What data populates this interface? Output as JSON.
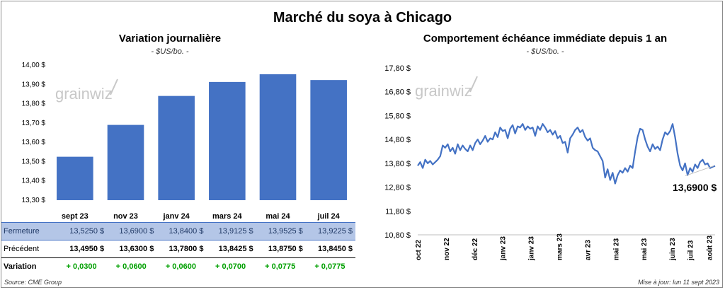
{
  "title": "Marché du soya à Chicago",
  "watermark": "grainwiz",
  "left_chart": {
    "subtitle": "Variation journalière",
    "unit": "- $US/bo. -",
    "bar_color": "#4472c4"
  },
  "right_chart": {
    "subtitle": "Comportement échéance immédiate depuis 1 an",
    "unit": "- $US/bo. -",
    "line_color": "#4472c4",
    "last_value_label": "13,6900 $"
  },
  "chart_data": [
    {
      "type": "bar",
      "categories": [
        "sept 23",
        "nov 23",
        "janv 24",
        "mars 24",
        "mai 24",
        "juil 24"
      ],
      "values": [
        13.525,
        13.69,
        13.84,
        13.9125,
        13.9525,
        13.9225
      ],
      "ylim": [
        13.3,
        14.0
      ],
      "yticks": [
        "14,00 $",
        "13,90 $",
        "13,80 $",
        "13,70 $",
        "13,60 $",
        "13,50 $",
        "13,40 $",
        "13,30 $"
      ],
      "ytick_values": [
        14.0,
        13.9,
        13.8,
        13.7,
        13.6,
        13.5,
        13.4,
        13.3
      ],
      "grid": false,
      "legend": "none"
    },
    {
      "type": "line",
      "x_start": "oct 22",
      "x_end": "11 sept 2023",
      "x_tick_labels": [
        "oct 22",
        "nov 22",
        "déc 22",
        "janv 23",
        "janv 23",
        "mars 23",
        "avr 23",
        "mai 23",
        "mai 23",
        "juin 23",
        "juil 23",
        "août 23"
      ],
      "x_tick_positions": [
        0.0,
        0.095,
        0.19,
        0.285,
        0.38,
        0.475,
        0.57,
        0.665,
        0.76,
        0.855,
        0.915,
        0.98
      ],
      "ylim": [
        10.8,
        17.8
      ],
      "yticks": [
        "17,80 $",
        "16,80 $",
        "15,80 $",
        "14,80 $",
        "13,80 $",
        "12,80 $",
        "11,80 $",
        "10,80 $"
      ],
      "ytick_values": [
        17.8,
        16.8,
        15.8,
        14.8,
        13.8,
        12.8,
        11.8,
        10.8
      ],
      "grid": false,
      "values": [
        13.7,
        13.85,
        13.6,
        13.95,
        13.8,
        13.9,
        13.75,
        13.85,
        13.95,
        14.1,
        14.55,
        14.45,
        14.6,
        14.3,
        14.45,
        14.2,
        14.6,
        14.35,
        14.55,
        14.4,
        14.3,
        14.55,
        14.35,
        14.65,
        14.8,
        14.6,
        14.75,
        14.95,
        14.7,
        14.85,
        14.8,
        15.1,
        14.9,
        15.3,
        15.15,
        15.2,
        14.85,
        15.25,
        15.4,
        15.05,
        15.35,
        15.3,
        15.45,
        15.2,
        15.35,
        15.25,
        15.3,
        14.95,
        15.35,
        15.2,
        15.45,
        15.3,
        15.1,
        15.2,
        15.0,
        15.15,
        14.85,
        14.95,
        14.65,
        14.7,
        14.25,
        14.85,
        15.0,
        15.2,
        15.3,
        15.1,
        15.2,
        14.9,
        14.75,
        14.85,
        14.45,
        14.35,
        14.3,
        14.1,
        13.9,
        13.2,
        13.55,
        13.1,
        13.4,
        12.95,
        13.3,
        13.5,
        13.4,
        13.6,
        13.45,
        13.7,
        13.6,
        14.3,
        14.9,
        15.25,
        15.2,
        14.8,
        14.5,
        14.3,
        14.6,
        14.4,
        14.5,
        14.35,
        14.8,
        15.1,
        15.0,
        15.15,
        15.45,
        14.9,
        14.2,
        13.7,
        13.5,
        13.8,
        13.3,
        13.6,
        13.45,
        13.75,
        13.6,
        13.85,
        13.95,
        13.75,
        13.8,
        13.6,
        13.65,
        13.69
      ]
    }
  ],
  "table": {
    "ferm_label": "Fermeture",
    "prec_label": "Précédent",
    "var_label": "Variation",
    "fermeture": [
      "13,5250",
      "13,6900",
      "13,8400",
      "13,9125",
      "13,9525",
      "13,9225"
    ],
    "precedent": [
      "13,4950",
      "13,6300",
      "13,7800",
      "13,8425",
      "13,8750",
      "13,8450"
    ],
    "variation": [
      "+ 0,0300",
      "+ 0,0600",
      "+ 0,0600",
      "+ 0,0700",
      "+ 0,0775",
      "+ 0,0775"
    ],
    "currency": "$"
  },
  "footer": {
    "source": "Source: CME Group",
    "updated": "Mise à jour: lun 11 sept 2023"
  }
}
